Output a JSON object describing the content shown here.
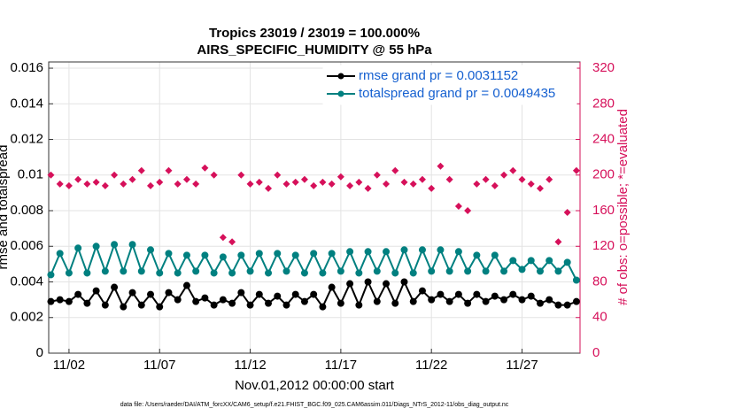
{
  "chart_data": {
    "type": "line",
    "title": "Tropics 23019 / 23019 = 100.000%",
    "subtitle": "AIRS_SPECIFIC_HUMIDITY @ 55 hPa",
    "xlabel": "Nov.01,2012 00:00:00 start",
    "ylabel": "rmse and totalspread",
    "y2label": "# of obs: o=possible; *=evaluated",
    "footnote": "data file: /Users/raeder/DAI/ATM_forcXX/CAM6_setup/f.e21.FHIST_BGC.f09_025.CAM6assim.011/Diags_NTrS_2012-11/obs_diag_output.nc",
    "x": [
      1,
      1.5,
      2,
      2.5,
      3,
      3.5,
      4,
      4.5,
      5,
      5.5,
      6,
      6.5,
      7,
      7.5,
      8,
      8.5,
      9,
      9.5,
      10,
      10.5,
      11,
      11.5,
      12,
      12.5,
      13,
      13.5,
      14,
      14.5,
      15,
      15.5,
      16,
      16.5,
      17,
      17.5,
      18,
      18.5,
      19,
      19.5,
      20,
      20.5,
      21,
      21.5,
      22,
      22.5,
      23,
      23.5,
      24,
      24.5,
      25,
      25.5,
      26,
      26.5,
      27,
      27.5,
      28,
      28.5,
      29,
      29.5,
      30
    ],
    "series": [
      {
        "name": "rmse grand pr = 0.0031152",
        "color": "#000000",
        "marker": "circle",
        "values": [
          0.0029,
          0.003,
          0.0029,
          0.0033,
          0.0028,
          0.0035,
          0.0027,
          0.0037,
          0.0026,
          0.0034,
          0.0027,
          0.0033,
          0.0026,
          0.0034,
          0.003,
          0.0038,
          0.0029,
          0.0031,
          0.0027,
          0.003,
          0.0028,
          0.0034,
          0.0027,
          0.0033,
          0.0028,
          0.0032,
          0.0027,
          0.0033,
          0.0029,
          0.0033,
          0.0026,
          0.0037,
          0.0028,
          0.0039,
          0.0027,
          0.004,
          0.0029,
          0.0039,
          0.0028,
          0.004,
          0.0029,
          0.0035,
          0.003,
          0.0033,
          0.0029,
          0.0033,
          0.0028,
          0.0033,
          0.0029,
          0.0032,
          0.003,
          0.0033,
          0.003,
          0.0032,
          0.0028,
          0.003,
          0.0027,
          0.0027,
          0.0029
        ]
      },
      {
        "name": "totalspread grand pr = 0.0049435",
        "color": "#008080",
        "marker": "circle",
        "values": [
          0.0044,
          0.0056,
          0.0045,
          0.0059,
          0.0045,
          0.006,
          0.0046,
          0.0061,
          0.0046,
          0.0061,
          0.0046,
          0.0058,
          0.0045,
          0.0056,
          0.0045,
          0.0055,
          0.0046,
          0.0055,
          0.0045,
          0.0054,
          0.0045,
          0.0055,
          0.0046,
          0.0056,
          0.0045,
          0.0056,
          0.0046,
          0.0055,
          0.0045,
          0.0056,
          0.0045,
          0.0056,
          0.0046,
          0.0057,
          0.0045,
          0.0057,
          0.0046,
          0.0057,
          0.0045,
          0.0058,
          0.0045,
          0.0058,
          0.0046,
          0.0058,
          0.0046,
          0.0057,
          0.0046,
          0.0055,
          0.0046,
          0.0055,
          0.0046,
          0.0052,
          0.0047,
          0.0052,
          0.0046,
          0.0052,
          0.0046,
          0.0051,
          0.0041
        ]
      },
      {
        "color": "#d6105a",
        "marker": "star",
        "axis": "y2",
        "values": [
          200,
          190,
          188,
          195,
          190,
          192,
          188,
          200,
          190,
          195,
          205,
          188,
          192,
          205,
          190,
          195,
          190,
          208,
          200,
          130,
          125,
          200,
          190,
          192,
          185,
          200,
          190,
          192,
          195,
          188,
          192,
          190,
          198,
          188,
          192,
          185,
          200,
          190,
          205,
          192,
          190,
          195,
          185,
          210,
          195,
          165,
          160,
          190,
          195,
          188,
          200,
          205,
          195,
          190,
          185,
          195,
          125,
          158,
          205
        ]
      }
    ],
    "xlim": [
      0.88,
      30.2
    ],
    "xticks": [
      {
        "value": 2,
        "label": "11/02"
      },
      {
        "value": 7,
        "label": "11/07"
      },
      {
        "value": 12,
        "label": "11/12"
      },
      {
        "value": 17,
        "label": "11/17"
      },
      {
        "value": 22,
        "label": "11/22"
      },
      {
        "value": 27,
        "label": "11/27"
      }
    ],
    "ylim": [
      0,
      0.01635
    ],
    "yticks": [
      0,
      0.002,
      0.004,
      0.006,
      0.008,
      0.01,
      0.012,
      0.014,
      0.016
    ],
    "y2lim": [
      0,
      327
    ],
    "y2ticks": [
      0,
      40,
      80,
      120,
      160,
      200,
      240,
      280,
      320
    ],
    "y2color": "#d6105a",
    "grid": true,
    "legend": "north-east"
  }
}
